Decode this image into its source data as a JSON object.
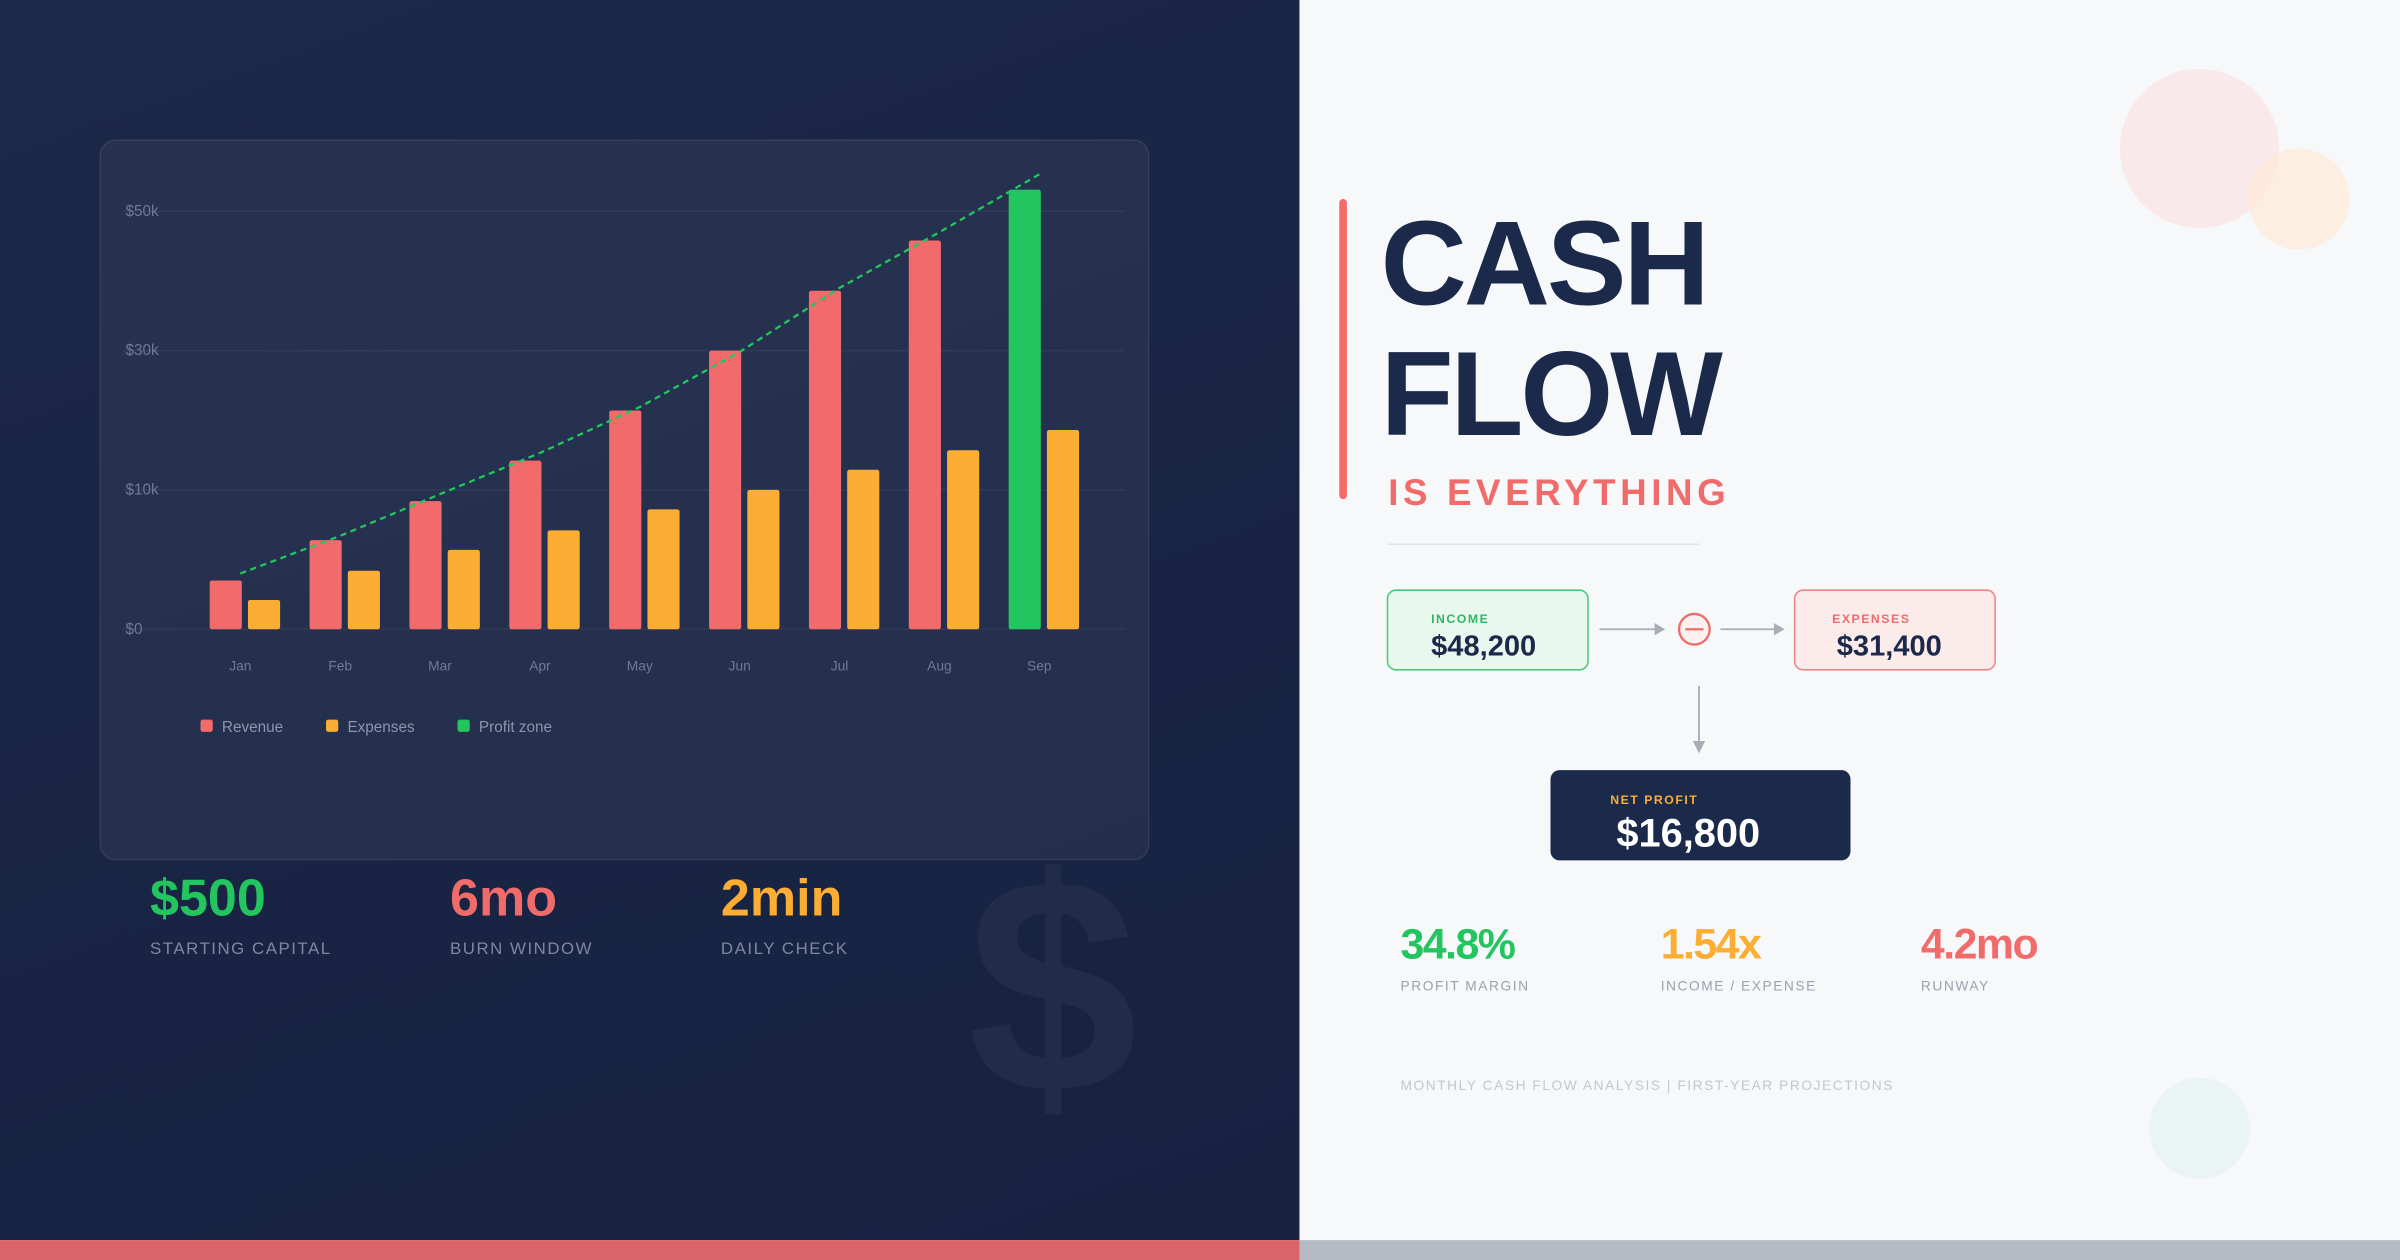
{
  "chart_data": {
    "type": "bar",
    "categories": [
      "Jan",
      "Feb",
      "Mar",
      "Apr",
      "May",
      "Jun",
      "Jul",
      "Aug",
      "Sep"
    ],
    "series": [
      {
        "name": "Revenue",
        "color": "#f26b6b",
        "colors": [
          "#f26b6b",
          "#f26b6b",
          "#f26b6b",
          "#f26b6b",
          "#f26b6b",
          "#f26b6b",
          "#f26b6b",
          "#f26b6b",
          "#22c55e"
        ],
        "values": [
          3500,
          6400,
          9200,
          14200,
          21400,
          30000,
          38600,
          45800,
          53100
        ]
      },
      {
        "name": "Expenses",
        "color": "#fbad34",
        "values": [
          2100,
          4200,
          5700,
          7100,
          8600,
          10000,
          12900,
          15700,
          18600
        ]
      }
    ],
    "legend_extra": {
      "name": "Profit zone",
      "color": "#22c55e"
    },
    "trend": {
      "color": "#22c55e",
      "values": [
        4000,
        6700,
        9700,
        15300,
        21900,
        29800,
        39000,
        47000,
        55300
      ]
    },
    "ylim": [
      0,
      56000
    ],
    "yticks": [
      {
        "value": 0,
        "label": "$0"
      },
      {
        "value": 10000,
        "label": "$10k"
      },
      {
        "value": 30000,
        "label": "$30k"
      },
      {
        "value": 50000,
        "label": "$50k"
      }
    ],
    "grid": true
  },
  "stats": [
    {
      "value": "$500",
      "label": "STARTING CAPITAL",
      "color": "#22c55e"
    },
    {
      "value": "6mo",
      "label": "BURN WINDOW",
      "color": "#f26b6b"
    },
    {
      "value": "2min",
      "label": "DAILY CHECK",
      "color": "#fbad34"
    }
  ],
  "watermark": "$",
  "header": {
    "line1": "CASH",
    "line2": "FLOW",
    "tagline": "IS EVERYTHING"
  },
  "flow": {
    "income": {
      "label": "INCOME",
      "value": "$48,200"
    },
    "expenses": {
      "label": "EXPENSES",
      "value": "$31,400"
    },
    "net": {
      "label": "NET PROFIT",
      "value": "$16,800"
    }
  },
  "metrics": [
    {
      "value": "34.8%",
      "label": "PROFIT MARGIN",
      "color": "#22c55e"
    },
    {
      "value": "1.54x",
      "label": "INCOME / EXPENSE",
      "color": "#fbad34"
    },
    {
      "value": "4.2mo",
      "label": "RUNWAY",
      "color": "#f26b6b"
    }
  ],
  "footer": "MONTHLY CASH FLOW ANALYSIS | FIRST-YEAR PROJECTIONS"
}
